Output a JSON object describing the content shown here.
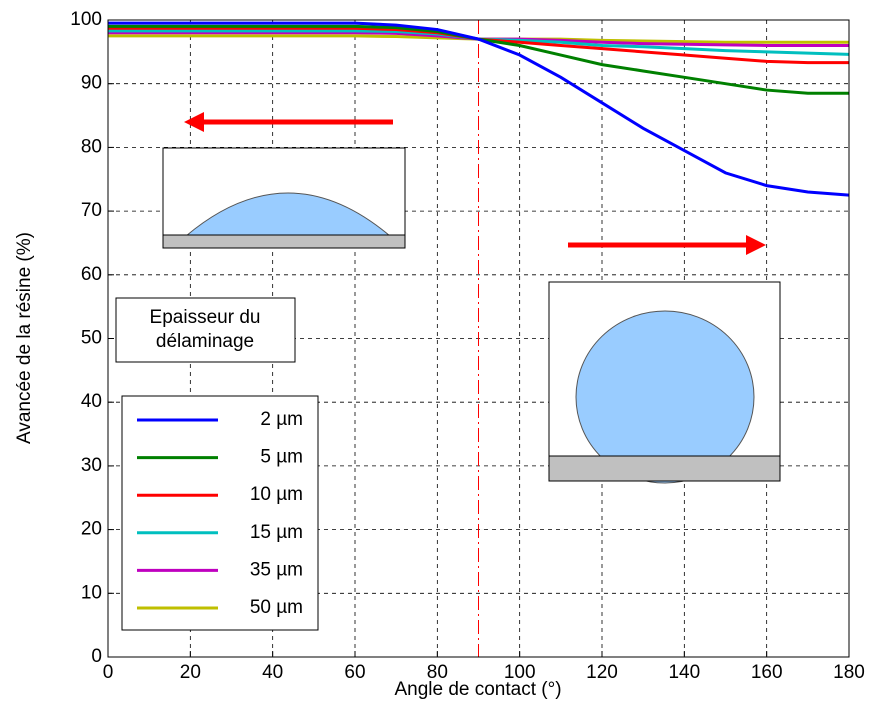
{
  "chart_data": {
    "type": "line",
    "xlabel": "Angle de contact (°)",
    "ylabel": "Avancée de la résine (%)",
    "x": [
      0,
      10,
      20,
      30,
      40,
      50,
      60,
      70,
      80,
      90,
      100,
      110,
      120,
      130,
      140,
      150,
      160,
      170,
      180
    ],
    "series": [
      {
        "name": "2 µm",
        "color": "#0000ff",
        "values": [
          99.5,
          99.5,
          99.5,
          99.5,
          99.5,
          99.5,
          99.5,
          99.2,
          98.5,
          97,
          94.5,
          91,
          87,
          83,
          79.5,
          76,
          74,
          73,
          72.5
        ]
      },
      {
        "name": "5 µm",
        "color": "#008000",
        "values": [
          99,
          99,
          99,
          99,
          99,
          99,
          99,
          98.8,
          98.2,
          97,
          96,
          94.5,
          93,
          92,
          91,
          90,
          89,
          88.5,
          88.5
        ]
      },
      {
        "name": "10 µm",
        "color": "#ff0000",
        "values": [
          98.7,
          98.7,
          98.7,
          98.7,
          98.7,
          98.7,
          98.7,
          98.5,
          98,
          97,
          96.5,
          96,
          95.5,
          95,
          94.5,
          94,
          93.5,
          93.3,
          93.3
        ]
      },
      {
        "name": "15 µm",
        "color": "#00bfbf",
        "values": [
          98.3,
          98.3,
          98.3,
          98.3,
          98.3,
          98.3,
          98.3,
          98.2,
          97.8,
          97,
          96.8,
          96.5,
          96,
          95.8,
          95.5,
          95.2,
          95,
          94.8,
          94.6
        ]
      },
      {
        "name": "35 µm",
        "color": "#bf00bf",
        "values": [
          98,
          98,
          98,
          98,
          98,
          98,
          98,
          97.9,
          97.5,
          97,
          97,
          96.8,
          96.5,
          96.3,
          96.2,
          96.1,
          96,
          96,
          96
        ]
      },
      {
        "name": "50 µm",
        "color": "#bfbf00",
        "values": [
          97.5,
          97.5,
          97.5,
          97.5,
          97.5,
          97.5,
          97.5,
          97.4,
          97.2,
          97,
          97,
          97,
          96.8,
          96.7,
          96.6,
          96.5,
          96.5,
          96.5,
          96.5
        ]
      }
    ],
    "legend_title": [
      "Epaisseur du",
      "délaminage"
    ],
    "vline": 90,
    "xlim": [
      0,
      180
    ],
    "xticks": [
      0,
      20,
      40,
      60,
      80,
      100,
      120,
      140,
      160,
      180
    ],
    "ylim": [
      0,
      100
    ],
    "yticks": [
      0,
      10,
      20,
      30,
      40,
      50,
      60,
      70,
      80,
      90,
      100
    ],
    "grid": true
  }
}
